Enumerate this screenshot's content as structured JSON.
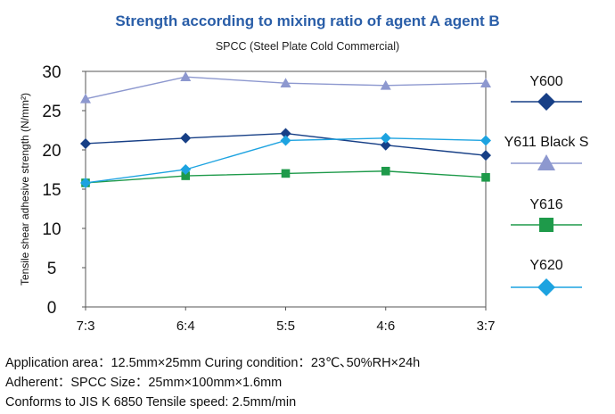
{
  "chart_data": {
    "type": "line",
    "title": "Strength according to mixing ratio of agent A agent B",
    "subtitle": "SPCC (Steel Plate Cold Commercial)",
    "xlabel": "",
    "ylabel": "Tensile shear adhesive strength (N/mm²)",
    "ylim": [
      0,
      30
    ],
    "yticks": [
      "0",
      "5",
      "10",
      "15",
      "20",
      "25",
      "30"
    ],
    "categories": [
      "7:3",
      "6:4",
      "5:5",
      "4:6",
      "3:7"
    ],
    "grid": false,
    "legend_position": "right",
    "series": [
      {
        "name": "Y600",
        "color": "#173f86",
        "marker": "diamond",
        "values": [
          20.8,
          21.5,
          22.1,
          20.6,
          19.3
        ]
      },
      {
        "name": "Y611 Black S",
        "color": "#8d98cf",
        "marker": "triangle",
        "values": [
          26.5,
          29.3,
          28.5,
          28.2,
          28.5
        ]
      },
      {
        "name": "Y616",
        "color": "#1e9a4a",
        "marker": "square",
        "values": [
          15.8,
          16.7,
          17.0,
          17.3,
          16.5
        ]
      },
      {
        "name": "Y620",
        "color": "#1da3e0",
        "marker": "diamond",
        "values": [
          15.8,
          17.5,
          21.2,
          21.5,
          21.2
        ]
      }
    ]
  },
  "notes": {
    "line1": "Application area：12.5mm×25mm  Curing condition：23℃､50%RH×24h",
    "line2": "Adherent：SPCC    Size：25mm×100mm×1.6mm",
    "line3": "Conforms to JIS K 6850    Tensile speed: 2.5mm/min"
  }
}
